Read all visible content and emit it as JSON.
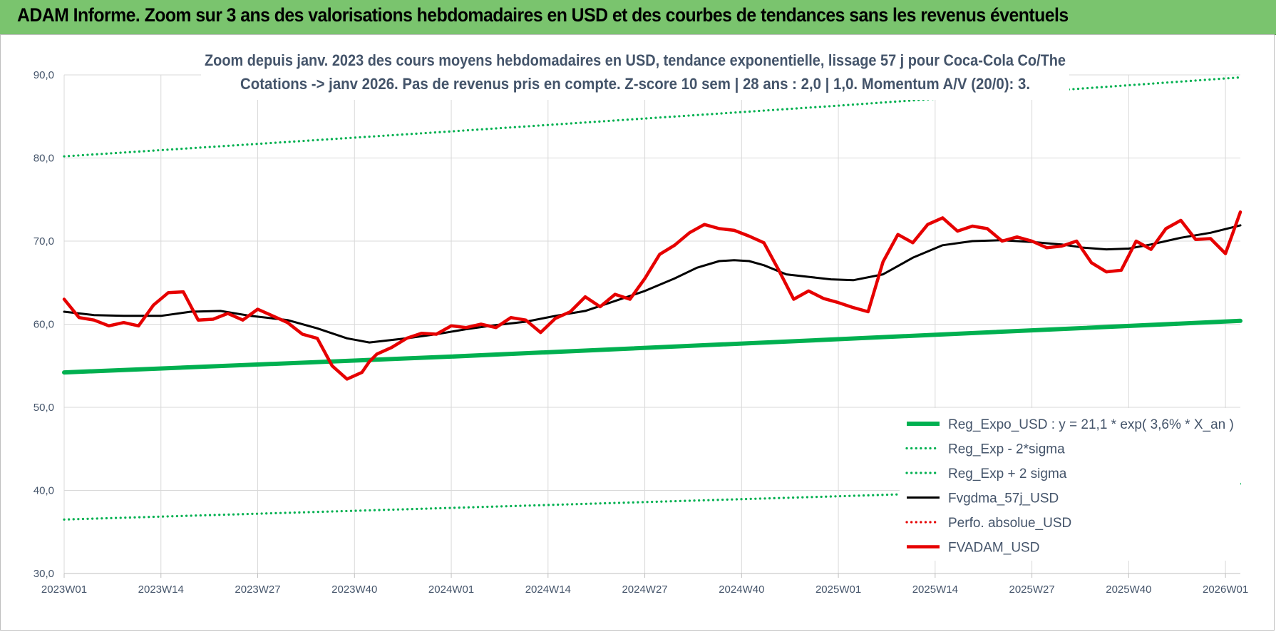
{
  "header": {
    "title": "ADAM Informe. Zoom sur 3 ans des valorisations hebdomadaires en USD et des courbes de tendances sans les revenus éventuels"
  },
  "colors": {
    "header_bg": "#7ac46e",
    "green": "#00b050",
    "red": "#e60000",
    "black": "#000000",
    "text": "#44546a",
    "grid": "#d9d9d9"
  },
  "chart_data": {
    "type": "line",
    "title_line1": "Zoom depuis janv. 2023 des cours moyens hebdomadaires en USD, tendance exponentielle, lissage 57 j pour Coca-Cola Co/The",
    "title_line2": "Cotations -> janv 2026. Pas de revenus pris en compte. Z-score 10 sem | 28 ans : 2,0 | 1,0. Momentum A/V (20/0): 3.",
    "ylim": [
      30,
      90
    ],
    "y_ticks": [
      "90,0",
      "80,0",
      "70,0",
      "60,0",
      "50,0",
      "40,0",
      "30,0"
    ],
    "x_range": [
      0,
      158
    ],
    "x_tick_index": [
      0,
      13,
      26,
      39,
      52,
      65,
      78,
      91,
      104,
      117,
      130,
      143,
      156
    ],
    "x_ticks": [
      "2023W01",
      "2023W14",
      "2023W27",
      "2023W40",
      "2024W01",
      "2024W14",
      "2024W27",
      "2024W40",
      "2025W01",
      "2025W14",
      "2025W27",
      "2025W40",
      "2026W01"
    ],
    "grid": true,
    "legend_position": "bottom-right",
    "series": [
      {
        "name": "Reg_Expo_USD : y = 21,1 * exp( 3,6% *  X_an )",
        "style": "solid-thick",
        "color": "#00b050",
        "x": [
          0,
          52,
          104,
          158
        ],
        "y": [
          54.2,
          56.1,
          58.2,
          60.4
        ]
      },
      {
        "name": "Reg_Exp - 2*sigma",
        "style": "dotted",
        "color": "#00b050",
        "x": [
          0,
          52,
          104,
          158
        ],
        "y": [
          36.5,
          37.9,
          39.3,
          40.8
        ]
      },
      {
        "name": "Reg_Exp + 2 sigma",
        "style": "dotted",
        "color": "#00b050",
        "x": [
          0,
          52,
          104,
          158
        ],
        "y": [
          80.2,
          83.2,
          86.3,
          89.7
        ]
      },
      {
        "name": "Fvgdma_57j_USD",
        "style": "solid",
        "color": "#000000",
        "x": [
          0,
          4,
          8,
          13,
          17,
          21,
          25,
          30,
          34,
          38,
          41,
          46,
          50,
          54,
          58,
          62,
          66,
          70,
          74,
          78,
          82,
          85,
          88,
          90,
          92,
          94,
          97,
          100,
          103,
          106,
          110,
          114,
          118,
          122,
          126,
          130,
          134,
          137,
          140,
          143,
          146,
          150,
          154,
          158
        ],
        "y": [
          61.5,
          61.1,
          61.0,
          61.0,
          61.5,
          61.6,
          61.0,
          60.5,
          59.5,
          58.3,
          57.8,
          58.3,
          58.8,
          59.4,
          59.9,
          60.3,
          61.0,
          61.6,
          62.8,
          64.0,
          65.5,
          66.8,
          67.6,
          67.7,
          67.6,
          67.1,
          66.0,
          65.7,
          65.4,
          65.3,
          66.0,
          68.0,
          69.5,
          70.0,
          70.1,
          69.9,
          69.6,
          69.2,
          69.0,
          69.1,
          69.6,
          70.4,
          71.0,
          71.9
        ]
      },
      {
        "name": "Perfo. absolue_USD",
        "style": "dotted",
        "color": "#e60000",
        "x": [],
        "y": []
      },
      {
        "name": "FVADAM_USD",
        "style": "solid-thick",
        "color": "#e60000",
        "x": [
          0,
          2,
          4,
          6,
          8,
          10,
          12,
          14,
          16,
          18,
          20,
          22,
          24,
          26,
          28,
          30,
          32,
          34,
          36,
          38,
          40,
          41,
          42,
          44,
          46,
          48,
          50,
          52,
          54,
          56,
          58,
          60,
          62,
          64,
          66,
          68,
          70,
          72,
          74,
          76,
          78,
          80,
          82,
          84,
          86,
          88,
          90,
          92,
          94,
          96,
          98,
          100,
          102,
          104,
          106,
          108,
          110,
          112,
          114,
          116,
          118,
          120,
          122,
          124,
          126,
          128,
          130,
          132,
          134,
          136,
          138,
          140,
          142,
          144,
          146,
          148,
          150,
          152,
          154,
          156,
          158
        ],
        "y": [
          63.0,
          60.8,
          60.5,
          59.8,
          60.2,
          59.8,
          62.3,
          63.8,
          63.9,
          60.5,
          60.6,
          61.3,
          60.5,
          61.8,
          61.0,
          60.2,
          58.8,
          58.3,
          55.0,
          53.4,
          54.2,
          55.5,
          56.4,
          57.2,
          58.3,
          58.9,
          58.8,
          59.8,
          59.6,
          60.0,
          59.6,
          60.8,
          60.5,
          59.0,
          60.7,
          61.5,
          63.3,
          62.1,
          63.6,
          63.0,
          65.5,
          68.4,
          69.5,
          71.0,
          72.0,
          71.5,
          71.3,
          70.6,
          69.8,
          66.5,
          63.0,
          64.0,
          63.1,
          62.6,
          62.0,
          61.5,
          67.5,
          70.8,
          69.8,
          72.0,
          72.8,
          71.2,
          71.8,
          71.5,
          70.0,
          70.5,
          70.0,
          69.2,
          69.4,
          70.0,
          67.4,
          66.3,
          66.5,
          70.0,
          69.0,
          71.5,
          72.5,
          70.2,
          70.3,
          68.5,
          73.5
        ]
      }
    ]
  }
}
